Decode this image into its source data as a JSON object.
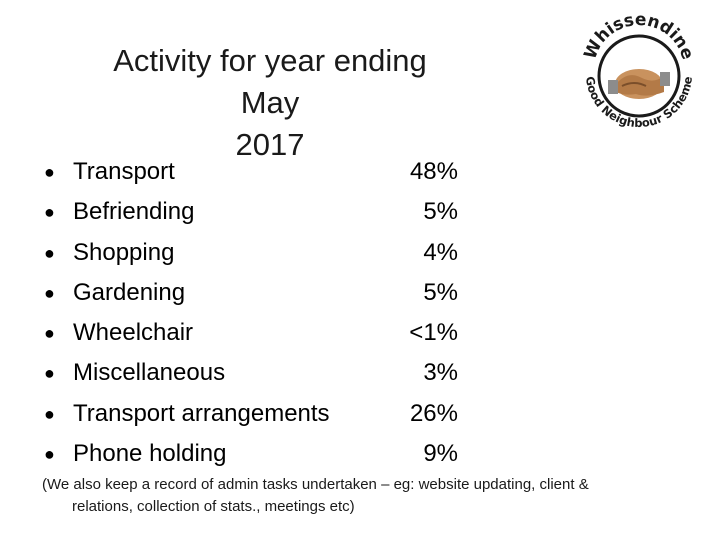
{
  "slide": {
    "title_line1": "Activity for year ending May",
    "title_line2": "2017"
  },
  "logo": {
    "top_text": "Whissendine",
    "bottom_text": "Good Neighbour Scheme",
    "ring_color": "#1a1a1a",
    "hands_color": "#c28a57"
  },
  "activities": [
    {
      "label": "Transport",
      "value": "48%"
    },
    {
      "label": "Befriending",
      "value": "5%"
    },
    {
      "label": "Shopping",
      "value": "4%"
    },
    {
      "label": "Gardening",
      "value": "5%"
    },
    {
      "label": "Wheelchair",
      "value": "<1%"
    },
    {
      "label": "Miscellaneous",
      "value": "3%"
    },
    {
      "label": "Transport arrangements",
      "value": "26%"
    },
    {
      "label": "Phone holding",
      "value": "9%"
    }
  ],
  "note": {
    "line1": "(We also keep a record of admin tasks undertaken – eg: website updating, client &",
    "line2": "relations, collection of stats., meetings etc)"
  }
}
